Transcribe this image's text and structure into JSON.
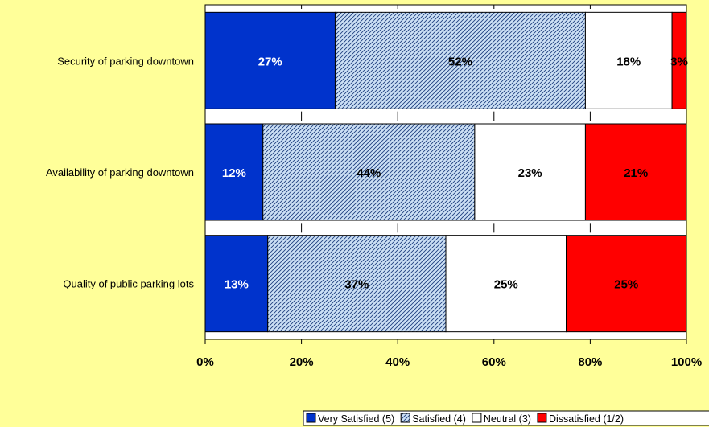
{
  "chart_data": {
    "type": "bar",
    "orientation": "horizontal",
    "stacked": true,
    "percent_stacked": true,
    "categories": [
      "Security of parking downtown",
      "Availability of parking downtown",
      "Quality of public parking lots"
    ],
    "series": [
      {
        "name": "Very Satisfied (5)",
        "values": [
          27,
          12,
          13
        ],
        "color": "#0033CC",
        "pattern": "solid",
        "label_color": "#FFFFFF"
      },
      {
        "name": "Satisfied (4)",
        "values": [
          52,
          44,
          37
        ],
        "color": "#CCE0F5",
        "pattern": "diagonal-hatch",
        "label_color": "#000000"
      },
      {
        "name": "Neutral (3)",
        "values": [
          18,
          23,
          25
        ],
        "color": "#FFFFFF",
        "pattern": "solid",
        "label_color": "#000000"
      },
      {
        "name": "Dissatisfied (1/2)",
        "values": [
          3,
          21,
          25
        ],
        "color": "#FF0000",
        "pattern": "solid",
        "label_color": "#000000"
      }
    ],
    "data_labels": [
      [
        "27%",
        "52%",
        "18%",
        "3%"
      ],
      [
        "12%",
        "44%",
        "23%",
        "21%"
      ],
      [
        "13%",
        "37%",
        "25%",
        "25%"
      ]
    ],
    "xlim": [
      0,
      100
    ],
    "x_ticks": [
      0,
      20,
      40,
      60,
      80,
      100
    ],
    "x_tick_labels": [
      "0%",
      "20%",
      "40%",
      "60%",
      "80%",
      "100%"
    ],
    "title": "",
    "xlabel": "",
    "ylabel": "",
    "grid": false,
    "legend_position": "bottom-right",
    "background_color": "#FFFF99",
    "plot_background": "#FFFFFF"
  }
}
